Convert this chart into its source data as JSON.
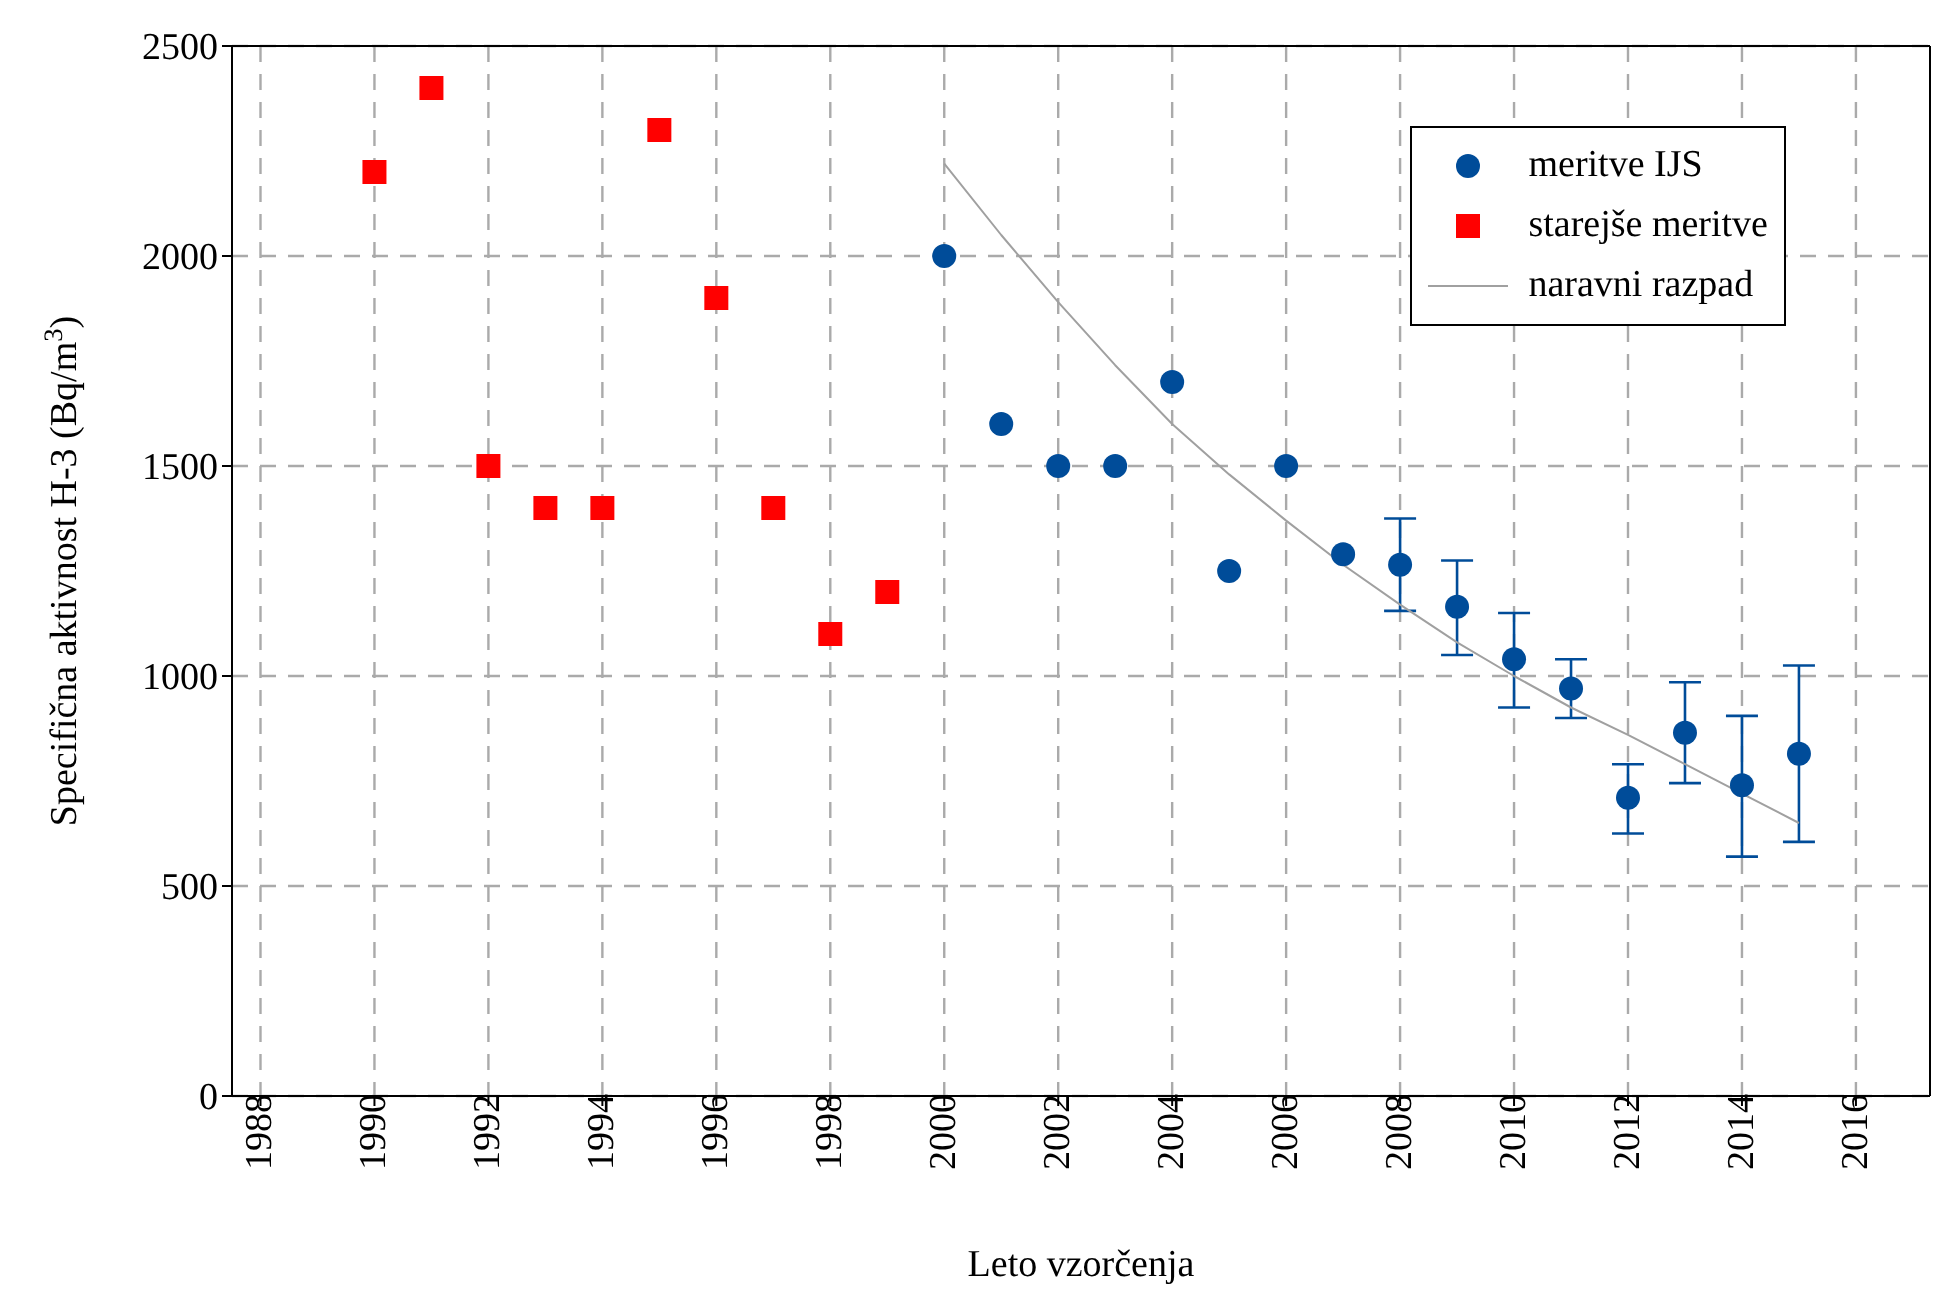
{
  "chart_data": {
    "type": "scatter",
    "xlabel": "Leto vzorčenja",
    "ylabel": "Specifična aktivnost H-3 (Bq/m$^{3}$)",
    "xlim": [
      1987.5,
      2017.3
    ],
    "xticks": [
      1988,
      1990,
      1992,
      1994,
      1996,
      1998,
      2000,
      2002,
      2004,
      2006,
      2008,
      2010,
      2012,
      2014,
      2016
    ],
    "ylim": [
      0,
      2500
    ],
    "yticks": [
      0,
      500,
      1000,
      1500,
      2000,
      2500
    ],
    "grid": true,
    "legend": "top right",
    "series": [
      {
        "name": "meritve IJS",
        "marker": "circle",
        "color": "#004c99",
        "x": [
          2000,
          2001,
          2002,
          2003,
          2004,
          2005,
          2006,
          2007,
          2008,
          2009,
          2010,
          2011,
          2012,
          2013,
          2014,
          2015
        ],
        "values": [
          2000,
          1600,
          1500,
          1500,
          1700,
          1250,
          1500,
          1290,
          1265,
          1165,
          1040,
          970,
          710,
          865,
          740,
          815
        ],
        "errors": [
          null,
          null,
          null,
          null,
          null,
          null,
          null,
          null,
          [
            1155,
            1375
          ],
          [
            1050,
            1275
          ],
          [
            925,
            1150
          ],
          [
            900,
            1040
          ],
          [
            625,
            790
          ],
          [
            745,
            985
          ],
          [
            570,
            905
          ],
          [
            605,
            1025
          ]
        ]
      },
      {
        "name": "starejše meritve",
        "marker": "square",
        "color": "#ff0000",
        "x": [
          1990,
          1991,
          1992,
          1993,
          1994,
          1995,
          1996,
          1997,
          1998,
          1999
        ],
        "values": [
          2200,
          2400,
          1500,
          1400,
          1400,
          2300,
          1900,
          1400,
          1100,
          1200
        ]
      },
      {
        "name": "naravni razpad",
        "type": "line",
        "marker": "none",
        "color": "#a0a0a0",
        "x": [
          2000,
          2001,
          2002,
          2003,
          2004,
          2005,
          2006,
          2007,
          2008,
          2009,
          2010,
          2011,
          2012,
          2013,
          2014,
          2015
        ],
        "values": [
          2220,
          2050,
          1890,
          1740,
          1600,
          1480,
          1370,
          1265,
          1170,
          1080,
          1000,
          925,
          860,
          790,
          720,
          650
        ]
      }
    ]
  }
}
